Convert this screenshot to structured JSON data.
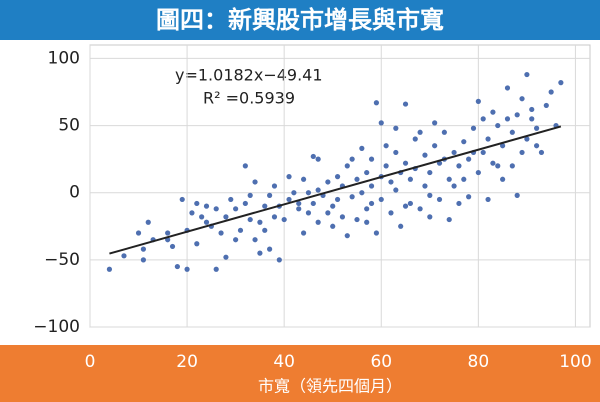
{
  "chart_data": {
    "type": "scatter",
    "title": "圖四：新興股市增長與市寬",
    "x_label": "市寬（領先四個月）",
    "equation_label": "y=1.0182x−49.41",
    "r_squared_label": "R² =0.5939",
    "trendline": {
      "slope": 1.0182,
      "intercept": -49.41
    },
    "color": "#4e6fb0",
    "trend_color": "#222222",
    "xlim": [
      0,
      103
    ],
    "xticks": [
      0,
      20,
      40,
      60,
      80,
      100
    ],
    "ylim": [
      -100,
      110
    ],
    "yticks": [
      {
        "value": -100,
        "label": "−100"
      },
      {
        "value": -50,
        "label": "−50"
      },
      0,
      50,
      100
    ],
    "grid": true,
    "x": [
      4,
      7,
      11,
      11,
      12,
      10,
      13,
      16,
      16,
      18,
      19,
      20,
      20,
      21,
      22,
      23,
      24,
      25,
      26,
      24,
      28,
      28,
      29,
      30,
      31,
      32,
      32,
      33,
      34,
      35,
      36,
      37,
      37,
      38,
      39,
      40,
      41,
      42,
      43,
      44,
      44,
      45,
      46,
      47,
      47,
      48,
      49,
      50,
      50,
      51,
      52,
      52,
      53,
      54,
      55,
      55,
      56,
      57,
      57,
      58,
      58,
      59,
      59,
      60,
      60,
      61,
      62,
      62,
      63,
      63,
      64,
      64,
      65,
      65,
      66,
      66,
      67,
      67,
      68,
      69,
      69,
      70,
      70,
      71,
      72,
      72,
      73,
      74,
      74,
      75,
      76,
      76,
      77,
      78,
      78,
      79,
      80,
      80,
      81,
      82,
      82,
      83,
      84,
      85,
      85,
      86,
      87,
      88,
      88,
      89,
      89,
      90,
      90,
      91,
      92,
      93,
      94,
      95,
      96,
      97,
      91,
      86,
      83,
      79,
      71,
      68,
      56,
      53,
      46,
      43,
      38,
      27,
      22,
      17,
      61,
      75,
      65,
      57,
      54,
      49,
      45,
      41,
      36,
      33,
      30,
      26,
      63,
      70,
      77,
      84,
      92,
      60,
      35,
      73,
      81,
      87,
      58,
      51,
      47,
      39,
      34
    ],
    "values": [
      -57,
      -47,
      -42,
      -50,
      -22,
      -30,
      -35,
      -30,
      -35,
      -55,
      -5,
      -57,
      -28,
      -15,
      -8,
      -18,
      -22,
      -25,
      -57,
      -10,
      -48,
      -18,
      -5,
      -12,
      -28,
      -8,
      20,
      -20,
      -35,
      -22,
      -10,
      -2,
      -42,
      -18,
      -50,
      -20,
      -5,
      0,
      -12,
      10,
      -30,
      -15,
      -8,
      -22,
      25,
      -2,
      8,
      -25,
      -10,
      12,
      5,
      -18,
      20,
      -3,
      10,
      -20,
      0,
      15,
      -12,
      25,
      5,
      -30,
      67,
      12,
      -5,
      20,
      8,
      -15,
      30,
      2,
      15,
      -25,
      66,
      22,
      -8,
      10,
      40,
      18,
      -12,
      28,
      5,
      15,
      -18,
      35,
      22,
      -5,
      45,
      10,
      -20,
      30,
      20,
      -8,
      38,
      25,
      -3,
      48,
      15,
      68,
      30,
      -5,
      40,
      22,
      50,
      10,
      35,
      78,
      45,
      -2,
      58,
      30,
      70,
      88,
      40,
      55,
      48,
      30,
      65,
      75,
      50,
      82,
      62,
      55,
      60,
      30,
      52,
      45,
      33,
      -32,
      27,
      -8,
      5,
      -30,
      -38,
      -40,
      35,
      5,
      -10,
      -22,
      25,
      -15,
      0,
      12,
      -28,
      -2,
      -35,
      -12,
      48,
      -2,
      10,
      20,
      35,
      52,
      -45,
      25,
      55,
      20,
      -8,
      -5,
      2,
      -10,
      8
    ]
  }
}
